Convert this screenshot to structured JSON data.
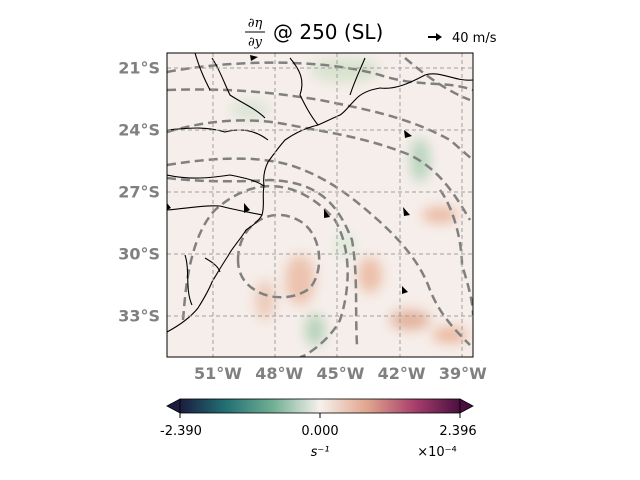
{
  "chart_data": {
    "type": "heatmap",
    "title_prefix": "∂η/∂y",
    "title_suffix": "@ 250 (SL)",
    "quiver_key": "40 m/s",
    "x_ticks": [
      {
        "value": -51,
        "label": "51°W"
      },
      {
        "value": -48,
        "label": "48°W"
      },
      {
        "value": -45,
        "label": "45°W"
      },
      {
        "value": -42,
        "label": "42°W"
      },
      {
        "value": -39,
        "label": "39°W"
      }
    ],
    "y_ticks": [
      {
        "value": -21,
        "label": "21°S"
      },
      {
        "value": -24,
        "label": "24°S"
      },
      {
        "value": -27,
        "label": "27°S"
      },
      {
        "value": -30,
        "label": "30°S"
      },
      {
        "value": -33,
        "label": "33°S"
      }
    ],
    "xlim": [
      -53.5,
      -38.5
    ],
    "ylim": [
      -35,
      -20.3
    ],
    "grid": true,
    "colorbar": {
      "min": -2.39,
      "max": 2.396,
      "ticks": [
        "-2.390",
        "0.000",
        "2.396"
      ],
      "unit": "s⁻¹",
      "scale": "×10⁻⁴",
      "colors": [
        "#1b1d3f",
        "#216f72",
        "#6fae93",
        "#f6f1ec",
        "#e0a48c",
        "#a73e6c",
        "#4a0f3f"
      ]
    },
    "colors": {
      "axis_label": "#808080",
      "contour": "#808080",
      "background": "#f6eeea"
    }
  }
}
